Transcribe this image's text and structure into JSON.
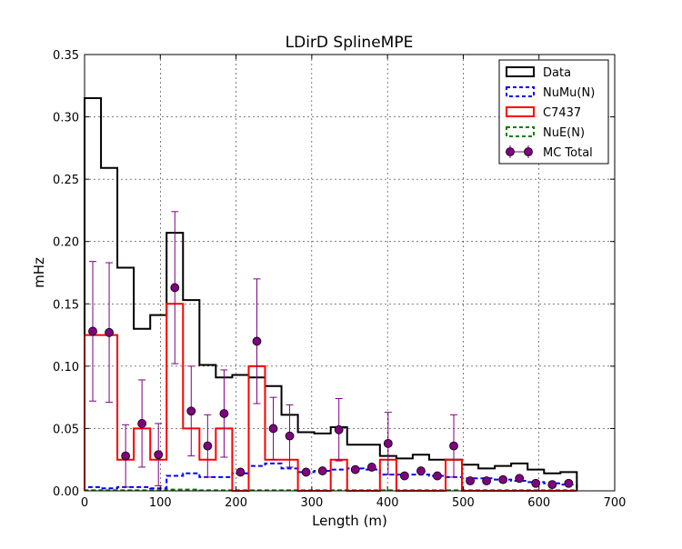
{
  "chart_data": {
    "type": "line",
    "title": "LDirD SplineMPE",
    "xlabel": "Length (m)",
    "ylabel": "mHz",
    "xlim": [
      0,
      700
    ],
    "ylim": [
      0,
      0.35
    ],
    "xticks": [
      0,
      100,
      200,
      300,
      400,
      500,
      600,
      700
    ],
    "yticks": [
      0.0,
      0.05,
      0.1,
      0.15,
      0.2,
      0.25,
      0.3,
      0.35
    ],
    "ytick_labels": [
      "0.00",
      "0.05",
      "0.10",
      "0.15",
      "0.20",
      "0.25",
      "0.30",
      "0.35"
    ],
    "grid": true,
    "legend_position": "top-right",
    "bin_edges": [
      0,
      21.7,
      43.3,
      65,
      86.7,
      108.3,
      130,
      151.7,
      173.3,
      195,
      216.7,
      238.3,
      260,
      281.7,
      303.3,
      325,
      346.7,
      368.3,
      390,
      411.7,
      433.3,
      455,
      476.7,
      498.3,
      520,
      541.7,
      563.3,
      585,
      606.7,
      628.3,
      650
    ],
    "bin_centers": [
      10.8,
      32.5,
      54.2,
      75.8,
      97.5,
      119.2,
      140.8,
      162.5,
      184.2,
      205.8,
      227.5,
      249.2,
      270.8,
      292.5,
      314.2,
      335.8,
      357.5,
      379.2,
      400.8,
      422.5,
      444.2,
      465.8,
      487.5,
      509.2,
      530.8,
      552.5,
      574.2,
      595.8,
      617.5,
      639.2
    ],
    "series": [
      {
        "name": "Data",
        "style": "step",
        "color": "#000000",
        "values": [
          0.315,
          0.259,
          0.179,
          0.13,
          0.141,
          0.207,
          0.153,
          0.101,
          0.091,
          0.093,
          0.091,
          0.084,
          0.061,
          0.047,
          0.046,
          0.051,
          0.037,
          0.037,
          0.028,
          0.026,
          0.029,
          0.025,
          0.025,
          0.021,
          0.018,
          0.02,
          0.022,
          0.017,
          0.014,
          0.015
        ]
      },
      {
        "name": "NuMu(N)",
        "style": "step-dashed",
        "color": "#0000ff",
        "values": [
          0.003,
          0.002,
          0.003,
          0.003,
          0.002,
          0.012,
          0.014,
          0.011,
          0.011,
          0.014,
          0.02,
          0.022,
          0.018,
          0.015,
          0.016,
          0.017,
          0.018,
          0.017,
          0.013,
          0.013,
          0.013,
          0.012,
          0.011,
          0.01,
          0.01,
          0.009,
          0.008,
          0.007,
          0.006,
          0.005
        ]
      },
      {
        "name": "C7437",
        "style": "step",
        "color": "#ff0000",
        "values": [
          0.125,
          0.125,
          0.025,
          0.05,
          0.025,
          0.15,
          0.05,
          0.025,
          0.05,
          0.0,
          0.1,
          0.025,
          0.025,
          0.0,
          0.0,
          0.025,
          0.0,
          0.0,
          0.025,
          0.0,
          0.0,
          0.0,
          0.025,
          0.0,
          0.0,
          0.0,
          0.0,
          0.0,
          0.0,
          0.0
        ]
      },
      {
        "name": "NuE(N)",
        "style": "step-dashed",
        "color": "#008000",
        "values": [
          0.0005,
          0.0005,
          0.0005,
          0.0005,
          0.0005,
          0.001,
          0.001,
          0.0005,
          0.0005,
          0.0005,
          0.0005,
          0.0005,
          0.0005,
          0.0005,
          0.0005,
          0.0005,
          0.0005,
          0.0005,
          0.0005,
          0.0005,
          0.0005,
          0.0005,
          0.0005,
          0.0005,
          0.0005,
          0.0005,
          0.0005,
          0.0005,
          0.0005,
          0.0005
        ]
      },
      {
        "name": "MC Total",
        "style": "errorbar",
        "color": "#800080",
        "values": [
          0.128,
          0.127,
          0.028,
          0.054,
          0.029,
          0.163,
          0.064,
          0.036,
          0.062,
          0.015,
          0.12,
          0.05,
          0.044,
          0.015,
          0.016,
          0.049,
          0.017,
          0.019,
          0.038,
          0.012,
          0.016,
          0.012,
          0.036,
          0.008,
          0.008,
          0.009,
          0.01,
          0.006,
          0.005,
          0.006
        ],
        "errors": [
          0.056,
          0.056,
          0.025,
          0.035,
          0.025,
          0.061,
          0.036,
          0.025,
          0.035,
          0.0,
          0.05,
          0.025,
          0.025,
          0.0,
          0.0,
          0.025,
          0.0,
          0.0,
          0.025,
          0.0,
          0.0,
          0.0,
          0.025,
          0.0,
          0.0,
          0.0,
          0.0,
          0.0,
          0.0,
          0.0
        ]
      }
    ]
  }
}
